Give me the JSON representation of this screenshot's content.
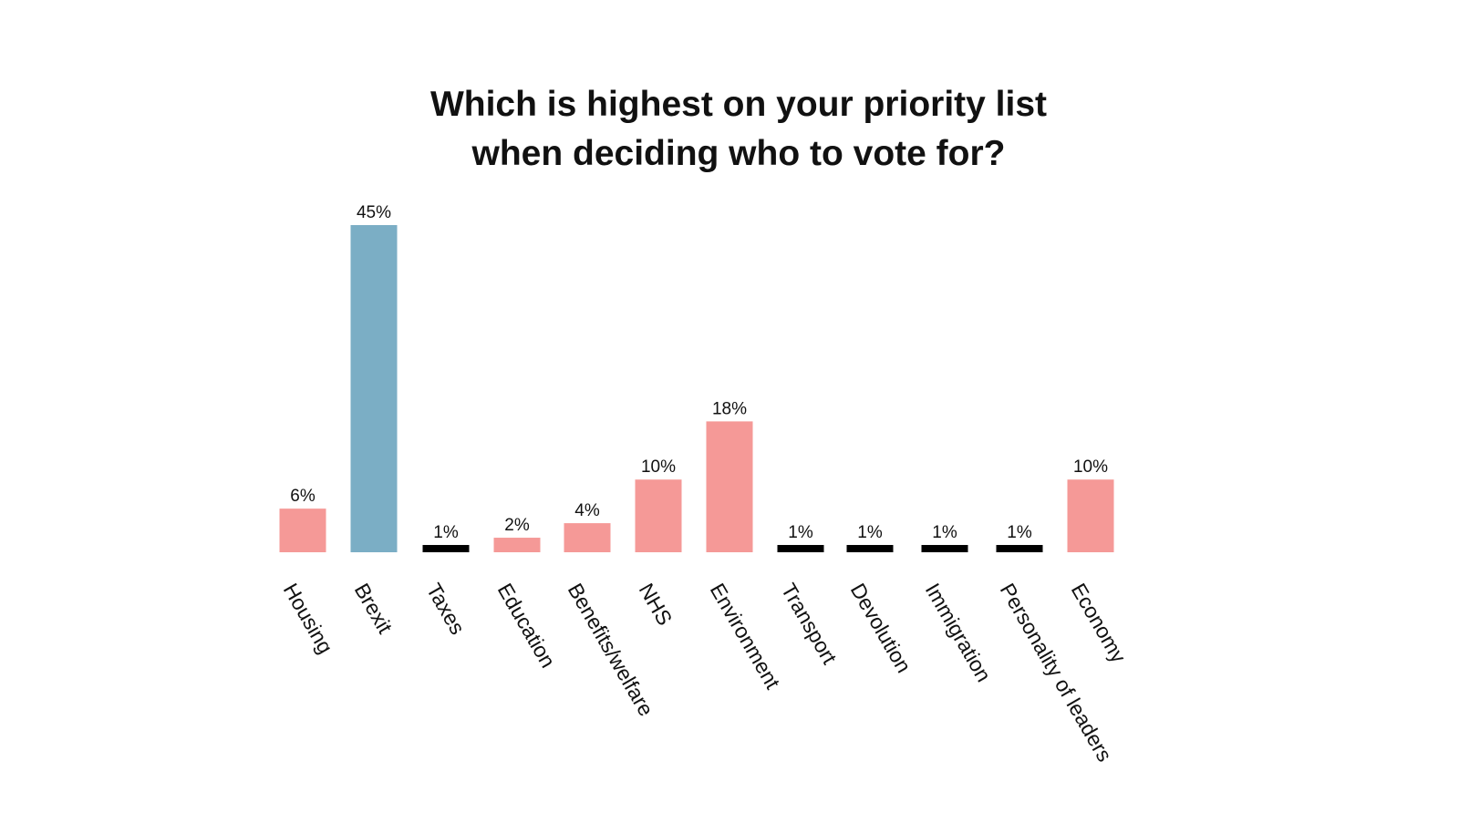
{
  "chart_data": {
    "type": "bar",
    "title_lines": [
      "Which is highest on your priority list",
      "when deciding who to vote for?"
    ],
    "categories": [
      "Housing",
      "Brexit",
      "Taxes",
      "Education",
      "Benefits/welfare",
      "NHS",
      "Environment",
      "Transport",
      "Devolution",
      "Immigration",
      "Personality of leaders",
      "Economy"
    ],
    "values": [
      6,
      45,
      1,
      2,
      4,
      10,
      18,
      1,
      1,
      1,
      1,
      10
    ],
    "data_labels": [
      "6%",
      "45%",
      "1%",
      "2%",
      "4%",
      "10%",
      "18%",
      "1%",
      "1%",
      "1%",
      "1%",
      "10%"
    ],
    "colors": [
      "#f59997",
      "#7baec5",
      "#000000",
      "#f59997",
      "#f59997",
      "#f59997",
      "#f59997",
      "#000000",
      "#000000",
      "#000000",
      "#000000",
      "#f59997"
    ],
    "ylim": [
      0,
      45
    ],
    "grid": false,
    "y_axis_shown": false
  }
}
